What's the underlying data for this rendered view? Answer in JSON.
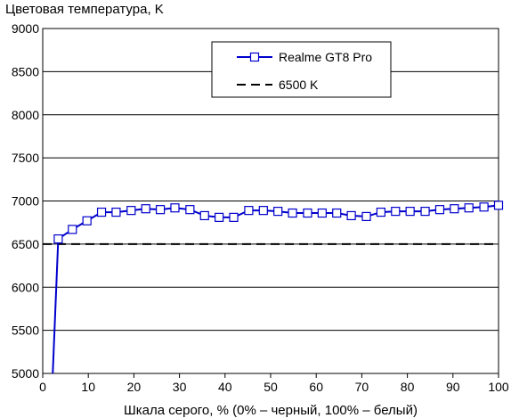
{
  "chart_data": {
    "type": "line",
    "title": "Цветовая температура, K",
    "xlabel": "Шкала серого, % (0% – черный, 100% – белый)",
    "ylabel": "",
    "xlim": [
      0,
      100
    ],
    "ylim": [
      5000,
      9000
    ],
    "xticks": [
      0,
      10,
      20,
      30,
      40,
      50,
      60,
      70,
      80,
      90,
      100
    ],
    "yticks": [
      5000,
      5500,
      6000,
      6500,
      7000,
      7500,
      8000,
      8500,
      9000
    ],
    "xtick_labels": [
      "0",
      "10",
      "20",
      "30",
      "40",
      "50",
      "60",
      "70",
      "80",
      "90",
      "100"
    ],
    "ytick_labels": [
      "5000",
      "5500",
      "6000",
      "6500",
      "7000",
      "7500",
      "8000",
      "8500",
      "9000"
    ],
    "grid": "horizontal",
    "legend_position": "top-right",
    "series": [
      {
        "name": "Realme GT8 Pro",
        "color": "#0000cc",
        "marker": "square",
        "x": [
          2.2,
          3.4,
          6.5,
          9.7,
          12.9,
          16.1,
          19.4,
          22.6,
          25.8,
          29.0,
          32.3,
          35.5,
          38.7,
          41.9,
          45.2,
          48.4,
          51.6,
          54.8,
          58.1,
          61.3,
          64.5,
          67.7,
          71.0,
          74.2,
          77.4,
          80.6,
          83.9,
          87.1,
          90.3,
          93.5,
          96.8,
          100
        ],
        "y": [
          5000,
          6560,
          6670,
          6770,
          6870,
          6870,
          6890,
          6910,
          6900,
          6920,
          6900,
          6830,
          6810,
          6810,
          6890,
          6890,
          6880,
          6860,
          6860,
          6860,
          6860,
          6830,
          6820,
          6870,
          6880,
          6880,
          6880,
          6900,
          6910,
          6920,
          6930,
          6950
        ],
        "marked_from_index": 1
      },
      {
        "name": "6500 K",
        "color": "#000000",
        "dash": "dashed",
        "x": [
          0,
          100
        ],
        "y": [
          6500,
          6500
        ]
      }
    ]
  }
}
